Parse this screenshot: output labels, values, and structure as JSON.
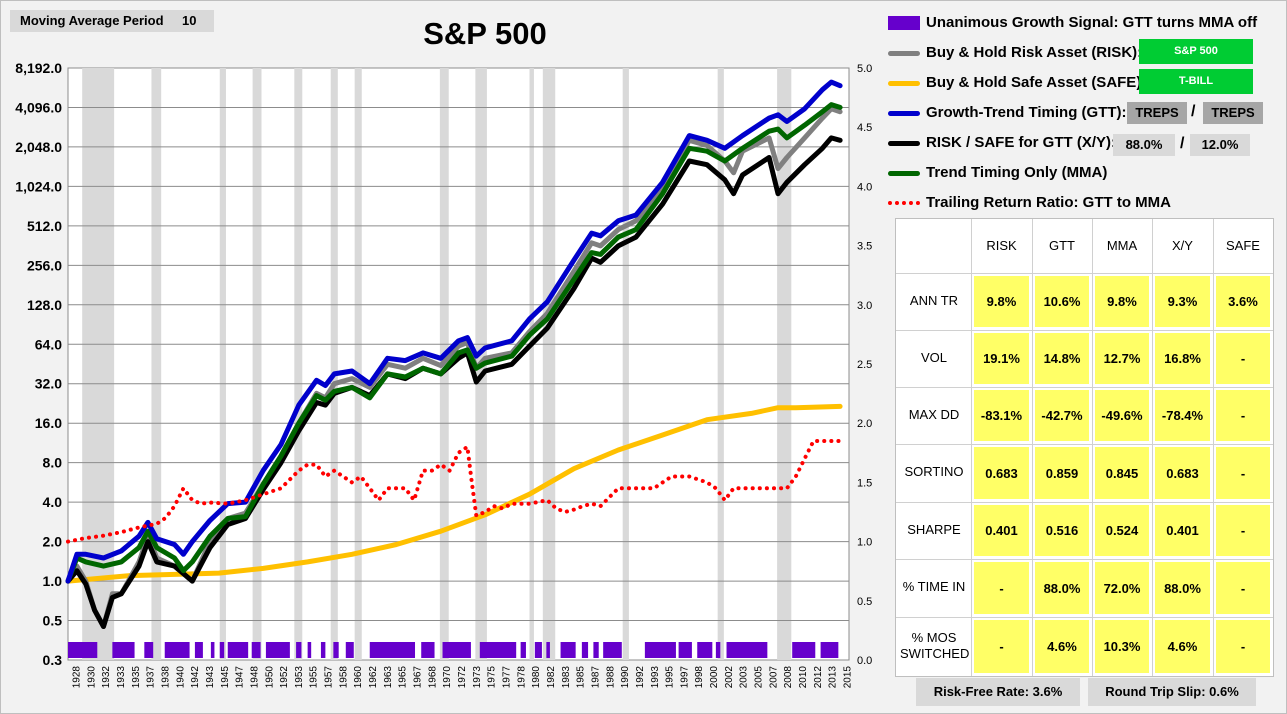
{
  "moving_average_period": {
    "label": "Moving Average Period",
    "value": "10"
  },
  "legend": {
    "signal": "Unanimous Growth Signal: GTT turns MMA off",
    "risk": "Buy & Hold Risk Asset (RISK):",
    "risk_value": "S&P 500",
    "safe": "Buy & Hold Safe Asset (SAFE):",
    "safe_value": "T-BILL",
    "gtt": "Growth-Trend Timing (GTT):",
    "gtt_value_1": "TREPS",
    "gtt_value_2": "TREPS",
    "xy": "RISK / SAFE for GTT (X/Y):",
    "xy_value_1": "88.0%",
    "xy_value_2": "12.0%",
    "mma": "Trend Timing Only (MMA)",
    "ratio": "Trailing Return Ratio: GTT to MMA",
    "separator": "/"
  },
  "colors": {
    "signal": "#6600cc",
    "risk": "#808080",
    "safe": "#ffc000",
    "gtt": "#0000cc",
    "xy": "#000000",
    "mma": "#006600",
    "ratio": "#ff0000",
    "asset_box": "#00cc33",
    "table_cell": "#ffff66"
  },
  "stats": {
    "headers": [
      "RISK",
      "GTT",
      "MMA",
      "X/Y",
      "SAFE"
    ],
    "rows": [
      {
        "label": "ANN TR",
        "values": [
          "9.8%",
          "10.6%",
          "9.8%",
          "9.3%",
          "3.6%"
        ]
      },
      {
        "label": "VOL",
        "values": [
          "19.1%",
          "14.8%",
          "12.7%",
          "16.8%",
          "-"
        ]
      },
      {
        "label": "MAX DD",
        "values": [
          "-83.1%",
          "-42.7%",
          "-49.6%",
          "-78.4%",
          "-"
        ]
      },
      {
        "label": "SORTINO",
        "values": [
          "0.683",
          "0.859",
          "0.845",
          "0.683",
          "-"
        ]
      },
      {
        "label": "SHARPE",
        "values": [
          "0.401",
          "0.516",
          "0.524",
          "0.401",
          "-"
        ]
      },
      {
        "label": "% TIME IN",
        "values": [
          "-",
          "88.0%",
          "72.0%",
          "88.0%",
          "-"
        ]
      },
      {
        "label": "% MOS SWITCHED",
        "values": [
          "-",
          "4.6%",
          "10.3%",
          "4.6%",
          "-"
        ]
      }
    ]
  },
  "footer": {
    "risk_free": "Risk-Free Rate:  3.6%",
    "slip": "Round Trip Slip:  0.6%"
  },
  "chart_data": {
    "type": "line",
    "title": "S&P 500",
    "y_scale": "log2",
    "ylim": [
      0.3,
      8192
    ],
    "y_ticks": [
      "8,192.0",
      "4,096.0",
      "2,048.0",
      "1,024.0",
      "512.0",
      "256.0",
      "128.0",
      "64.0",
      "32.0",
      "16.0",
      "8.0",
      "4.0",
      "2.0",
      "1.0",
      "0.5",
      "0.3"
    ],
    "y2lim": [
      0,
      5
    ],
    "y2_ticks": [
      "5.0",
      "4.5",
      "4.0",
      "3.5",
      "3.0",
      "2.5",
      "2.0",
      "1.5",
      "1.0",
      "0.5",
      "0.0"
    ],
    "x_ticks": [
      "1928",
      "1930",
      "1932",
      "1933",
      "1935",
      "1937",
      "1938",
      "1940",
      "1942",
      "1943",
      "1945",
      "1947",
      "1948",
      "1950",
      "1952",
      "1953",
      "1955",
      "1957",
      "1958",
      "1960",
      "1962",
      "1963",
      "1965",
      "1967",
      "1968",
      "1970",
      "1972",
      "1973",
      "1975",
      "1977",
      "1978",
      "1980",
      "1982",
      "1983",
      "1985",
      "1987",
      "1988",
      "1990",
      "1992",
      "1993",
      "1995",
      "1997",
      "1998",
      "2000",
      "2002",
      "2003",
      "2005",
      "2007",
      "2008",
      "2010",
      "2012",
      "2013",
      "2015"
    ],
    "xlim": [
      1928,
      2016
    ],
    "recessions": [
      [
        1929.6,
        1933.2
      ],
      [
        1937.4,
        1938.5
      ],
      [
        1945.1,
        1945.8
      ],
      [
        1948.8,
        1949.8
      ],
      [
        1953.5,
        1954.4
      ],
      [
        1957.6,
        1958.4
      ],
      [
        1960.3,
        1961.1
      ],
      [
        1969.9,
        1970.9
      ],
      [
        1973.9,
        1975.2
      ],
      [
        1980.0,
        1980.5
      ],
      [
        1981.5,
        1982.9
      ],
      [
        1990.5,
        1991.2
      ],
      [
        2001.2,
        2001.9
      ],
      [
        2007.9,
        2009.5
      ]
    ],
    "signal_periods": [
      [
        1928.0,
        1931.3
      ],
      [
        1933.0,
        1935.5
      ],
      [
        1936.6,
        1937.6
      ],
      [
        1938.9,
        1941.7
      ],
      [
        1942.3,
        1943.2
      ],
      [
        1944.1,
        1944.5
      ],
      [
        1945.1,
        1945.6
      ],
      [
        1946.0,
        1948.3
      ],
      [
        1948.7,
        1949.7
      ],
      [
        1950.3,
        1953.0
      ],
      [
        1953.7,
        1954.3
      ],
      [
        1955.0,
        1955.4
      ],
      [
        1956.5,
        1957.0
      ],
      [
        1957.9,
        1958.5
      ],
      [
        1959.3,
        1960.2
      ],
      [
        1962.0,
        1967.1
      ],
      [
        1967.8,
        1969.3
      ],
      [
        1970.2,
        1973.4
      ],
      [
        1974.4,
        1978.5
      ],
      [
        1979.0,
        1979.6
      ],
      [
        1980.6,
        1981.4
      ],
      [
        1981.9,
        1982.3
      ],
      [
        1983.5,
        1985.2
      ],
      [
        1985.9,
        1986.6
      ],
      [
        1987.2,
        1987.8
      ],
      [
        1988.3,
        1990.4
      ],
      [
        1993.0,
        1996.5
      ],
      [
        1996.8,
        1998.3
      ],
      [
        1998.9,
        2000.6
      ],
      [
        2001.0,
        2001.5
      ],
      [
        2002.2,
        2006.8
      ],
      [
        2009.6,
        2012.2
      ],
      [
        2012.8,
        2014.8
      ]
    ],
    "series": [
      {
        "name": "Growth-Trend Timing (GTT)",
        "color": "#0000cc",
        "axis": "left",
        "x": [
          1928,
          1929,
          1930,
          1932,
          1934,
          1936,
          1937,
          1938,
          1940,
          1941,
          1942,
          1944,
          1946,
          1948,
          1950,
          1952,
          1954,
          1956,
          1957,
          1958,
          1960,
          1962,
          1964,
          1966,
          1968,
          1970,
          1972,
          1973,
          1974,
          1975,
          1978,
          1980,
          1982,
          1985,
          1987,
          1988,
          1990,
          1992,
          1995,
          1998,
          2000,
          2002,
          2004,
          2007,
          2008,
          2009,
          2011,
          2013,
          2014,
          2015
        ],
        "y": [
          1.0,
          1.6,
          1.6,
          1.5,
          1.7,
          2.2,
          2.8,
          2.1,
          1.9,
          1.6,
          2.0,
          2.9,
          3.9,
          4.0,
          7.0,
          11,
          22,
          34,
          31,
          38,
          40,
          32,
          50,
          48,
          55,
          50,
          68,
          72,
          52,
          60,
          68,
          100,
          135,
          280,
          450,
          430,
          560,
          620,
          1100,
          2500,
          2300,
          2000,
          2500,
          3400,
          3600,
          3200,
          4000,
          5600,
          6400,
          6000
        ]
      },
      {
        "name": "Buy & Hold Risk Asset (RISK)",
        "color": "#808080",
        "axis": "left",
        "x": [
          1928,
          1929,
          1930,
          1931,
          1932,
          1933,
          1934,
          1936,
          1937,
          1938,
          1940,
          1942,
          1944,
          1946,
          1948,
          1950,
          1952,
          1954,
          1956,
          1957,
          1958,
          1960,
          1962,
          1964,
          1966,
          1968,
          1970,
          1972,
          1973,
          1974,
          1975,
          1978,
          1980,
          1982,
          1985,
          1987,
          1988,
          1990,
          1992,
          1995,
          1998,
          2000,
          2002,
          2003,
          2004,
          2007,
          2008,
          2009,
          2011,
          2013,
          2014,
          2015
        ],
        "y": [
          1.0,
          1.3,
          1.0,
          0.6,
          0.45,
          0.8,
          0.8,
          1.4,
          2.2,
          1.5,
          1.3,
          1.0,
          2.0,
          3.0,
          3.3,
          5.5,
          9,
          16,
          27,
          25,
          32,
          35,
          30,
          45,
          42,
          50,
          44,
          62,
          66,
          42,
          50,
          55,
          80,
          110,
          230,
          380,
          360,
          480,
          560,
          1000,
          2300,
          2100,
          1600,
          1300,
          1900,
          2400,
          1400,
          1700,
          2400,
          3400,
          4000,
          3800
        ]
      },
      {
        "name": "RISK / SAFE for GTT (X/Y)",
        "color": "#000000",
        "axis": "left",
        "x": [
          1928,
          1929,
          1930,
          1931,
          1932,
          1933,
          1934,
          1936,
          1937,
          1938,
          1940,
          1942,
          1944,
          1946,
          1948,
          1950,
          1952,
          1954,
          1956,
          1957,
          1958,
          1960,
          1962,
          1964,
          1966,
          1968,
          1970,
          1972,
          1973,
          1974,
          1975,
          1978,
          1980,
          1982,
          1985,
          1987,
          1988,
          1990,
          1992,
          1995,
          1998,
          2000,
          2002,
          2003,
          2004,
          2007,
          2008,
          2009,
          2011,
          2013,
          2014,
          2015
        ],
        "y": [
          1.0,
          1.2,
          0.95,
          0.6,
          0.45,
          0.75,
          0.8,
          1.3,
          2.0,
          1.4,
          1.3,
          1.0,
          1.8,
          2.7,
          3.0,
          5.0,
          8,
          14,
          23,
          22,
          27,
          30,
          26,
          38,
          35,
          42,
          38,
          50,
          55,
          33,
          40,
          45,
          62,
          85,
          170,
          290,
          270,
          360,
          420,
          750,
          1600,
          1500,
          1150,
          900,
          1250,
          1700,
          900,
          1100,
          1500,
          2000,
          2400,
          2300
        ]
      },
      {
        "name": "Trend Timing Only (MMA)",
        "color": "#006600",
        "axis": "left",
        "x": [
          1928,
          1929,
          1930,
          1932,
          1934,
          1936,
          1937,
          1938,
          1940,
          1941,
          1942,
          1944,
          1946,
          1948,
          1950,
          1952,
          1954,
          1956,
          1957,
          1958,
          1960,
          1962,
          1964,
          1966,
          1968,
          1970,
          1972,
          1973,
          1974,
          1975,
          1978,
          1980,
          1982,
          1985,
          1987,
          1988,
          1990,
          1992,
          1995,
          1998,
          2000,
          2002,
          2004,
          2007,
          2008,
          2009,
          2011,
          2013,
          2014,
          2015
        ],
        "y": [
          1.0,
          1.5,
          1.4,
          1.3,
          1.4,
          1.8,
          2.4,
          1.8,
          1.5,
          1.2,
          1.4,
          2.2,
          3.0,
          3.1,
          5.5,
          9,
          16,
          26,
          24,
          28,
          30,
          25,
          38,
          36,
          42,
          38,
          55,
          58,
          42,
          46,
          52,
          75,
          100,
          200,
          320,
          310,
          420,
          480,
          900,
          2000,
          1900,
          1600,
          2000,
          2700,
          2800,
          2400,
          3000,
          3800,
          4300,
          4100
        ]
      },
      {
        "name": "Buy & Hold Safe Asset (SAFE)",
        "color": "#ffc000",
        "axis": "left",
        "x": [
          1928,
          1935,
          1945,
          1950,
          1955,
          1960,
          1965,
          1970,
          1975,
          1980,
          1985,
          1990,
          1995,
          2000,
          2005,
          2008,
          2010,
          2015
        ],
        "y": [
          1.0,
          1.1,
          1.15,
          1.25,
          1.4,
          1.6,
          1.9,
          2.4,
          3.2,
          4.6,
          7.2,
          10,
          13,
          17,
          19,
          21,
          21,
          21.5
        ]
      },
      {
        "name": "Trailing Return Ratio: GTT to MMA",
        "color": "#ff0000",
        "axis": "right",
        "x": [
          1928,
          1930,
          1932,
          1934,
          1936,
          1938,
          1939,
          1940,
          1941,
          1942,
          1943,
          1944,
          1946,
          1948,
          1950,
          1952,
          1954,
          1955,
          1956,
          1957,
          1958,
          1960,
          1961,
          1962,
          1963,
          1964,
          1965,
          1966,
          1967,
          1968,
          1969,
          1970,
          1971,
          1972,
          1973,
          1973.5,
          1974,
          1975,
          1976,
          1977,
          1978,
          1980,
          1982,
          1983,
          1984,
          1985,
          1986,
          1987,
          1988,
          1990,
          1992,
          1994,
          1996,
          1998,
          2000,
          2001,
          2002,
          2003,
          2005,
          2007,
          2009,
          2010,
          2011,
          2012,
          2013,
          2015
        ],
        "y": [
          1.0,
          1.03,
          1.05,
          1.08,
          1.12,
          1.15,
          1.2,
          1.3,
          1.45,
          1.35,
          1.32,
          1.33,
          1.32,
          1.35,
          1.4,
          1.45,
          1.6,
          1.65,
          1.65,
          1.55,
          1.6,
          1.5,
          1.55,
          1.45,
          1.35,
          1.45,
          1.45,
          1.45,
          1.35,
          1.6,
          1.6,
          1.65,
          1.6,
          1.75,
          1.8,
          1.5,
          1.22,
          1.25,
          1.3,
          1.28,
          1.32,
          1.32,
          1.35,
          1.28,
          1.25,
          1.27,
          1.3,
          1.32,
          1.3,
          1.45,
          1.45,
          1.45,
          1.55,
          1.55,
          1.5,
          1.45,
          1.35,
          1.45,
          1.45,
          1.45,
          1.45,
          1.55,
          1.7,
          1.85,
          1.85,
          1.85
        ]
      }
    ]
  }
}
